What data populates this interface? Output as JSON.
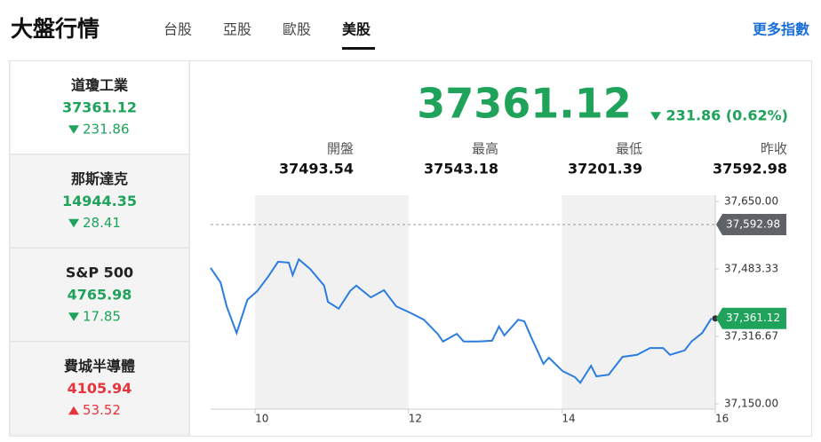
{
  "header": {
    "title": "大盤行情",
    "tabs": [
      "台股",
      "亞股",
      "歐股",
      "美股"
    ],
    "active_tab": 3,
    "more_link": "更多指數"
  },
  "indices": {
    "selected_index": 0,
    "items": [
      {
        "name": "道瓊工業",
        "value": "37361.12",
        "change": "231.86",
        "trend": "down",
        "color": "#1fa35b"
      },
      {
        "name": "那斯達克",
        "value": "14944.35",
        "change": "28.41",
        "trend": "down",
        "color": "#1fa35b"
      },
      {
        "name": "S&P 500",
        "value": "4765.98",
        "change": "17.85",
        "trend": "down",
        "color": "#1fa35b"
      },
      {
        "name": "費城半導體",
        "value": "4105.94",
        "change": "53.52",
        "trend": "up",
        "color": "#e8343c"
      }
    ]
  },
  "quote": {
    "price": "37361.12",
    "change": "231.86 (0.62%)",
    "trend": "down",
    "color": "#1fa35b",
    "stats": [
      {
        "label": "開盤",
        "value": "37493.54"
      },
      {
        "label": "最高",
        "value": "37543.18"
      },
      {
        "label": "最低",
        "value": "37201.39"
      },
      {
        "label": "昨收",
        "value": "37592.98"
      }
    ]
  },
  "chart_data": {
    "type": "line",
    "color": "#2b7de0",
    "x": [
      9.42,
      9.55,
      9.63,
      9.76,
      9.9,
      10.03,
      10.17,
      10.3,
      10.44,
      10.49,
      10.57,
      10.72,
      10.9,
      10.95,
      11.09,
      11.24,
      11.32,
      11.51,
      11.68,
      11.84,
      12.01,
      12.2,
      12.38,
      12.45,
      12.63,
      12.72,
      12.91,
      13.09,
      13.18,
      13.25,
      13.43,
      13.51,
      13.6,
      13.76,
      13.83,
      14.01,
      14.17,
      14.24,
      14.38,
      14.45,
      14.61,
      14.79,
      14.98,
      15.15,
      15.32,
      15.41,
      15.6,
      15.69,
      15.83,
      15.95
    ],
    "values": [
      37486,
      37450,
      37391,
      37325,
      37407,
      37429,
      37464,
      37501,
      37499,
      37468,
      37507,
      37483,
      37442,
      37402,
      37385,
      37429,
      37442,
      37413,
      37431,
      37391,
      37376,
      37358,
      37323,
      37304,
      37323,
      37304,
      37304,
      37306,
      37341,
      37319,
      37358,
      37354,
      37315,
      37249,
      37264,
      37231,
      37216,
      37202,
      37244,
      37218,
      37222,
      37266,
      37271,
      37288,
      37288,
      37271,
      37282,
      37304,
      37325,
      37361.12
    ],
    "xlim": [
      9.42,
      16
    ],
    "xticks": [
      10,
      12,
      14,
      16
    ],
    "ylim": [
      37150,
      37650
    ],
    "yticks": [
      {
        "value": 37650,
        "label": "37,650.00"
      },
      {
        "value": 37483.33,
        "label": "37,483.33"
      },
      {
        "value": 37316.67,
        "label": "37,316.67"
      },
      {
        "value": 37150,
        "label": "37,150.00"
      }
    ],
    "bands": [
      [
        10,
        12
      ],
      [
        14,
        16
      ]
    ],
    "annotations": [
      {
        "value": 37592.98,
        "label": "37,592.98",
        "color": "#5f6368",
        "dashed": true
      },
      {
        "value": 37361.12,
        "label": "37,361.12",
        "color": "#1fa35b",
        "dashed": false
      }
    ]
  }
}
